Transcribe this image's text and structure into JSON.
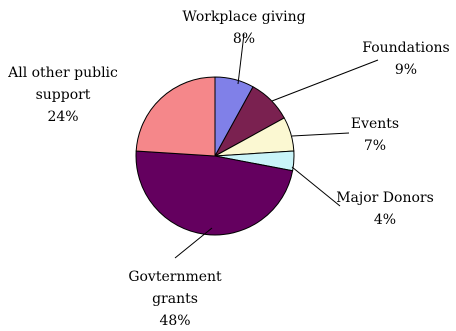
{
  "chart_data": {
    "type": "pie",
    "title": "",
    "start_angle_deg": 90,
    "direction": "clockwise",
    "slices": [
      {
        "name": "Workplace giving",
        "value": 8,
        "label_lines": [
          "Workplace giving"
        ],
        "pct_label": "8%",
        "color": "#8080e8"
      },
      {
        "name": "Foundations",
        "value": 9,
        "label_lines": [
          "Foundations"
        ],
        "pct_label": "9%",
        "color": "#7a2150"
      },
      {
        "name": "Events",
        "value": 7,
        "label_lines": [
          "Events"
        ],
        "pct_label": "7%",
        "color": "#fbf8d2"
      },
      {
        "name": "Major Donors",
        "value": 4,
        "label_lines": [
          "Major Donors"
        ],
        "pct_label": "4%",
        "color": "#c9f4f8"
      },
      {
        "name": "Govternment grants",
        "value": 48,
        "label_lines": [
          "Govternment",
          "grants"
        ],
        "pct_label": "48%",
        "color": "#64005f"
      },
      {
        "name": "All other public support",
        "value": 24,
        "label_lines": [
          "All other public",
          "support"
        ],
        "pct_label": "24%",
        "color": "#f5878a"
      }
    ]
  }
}
